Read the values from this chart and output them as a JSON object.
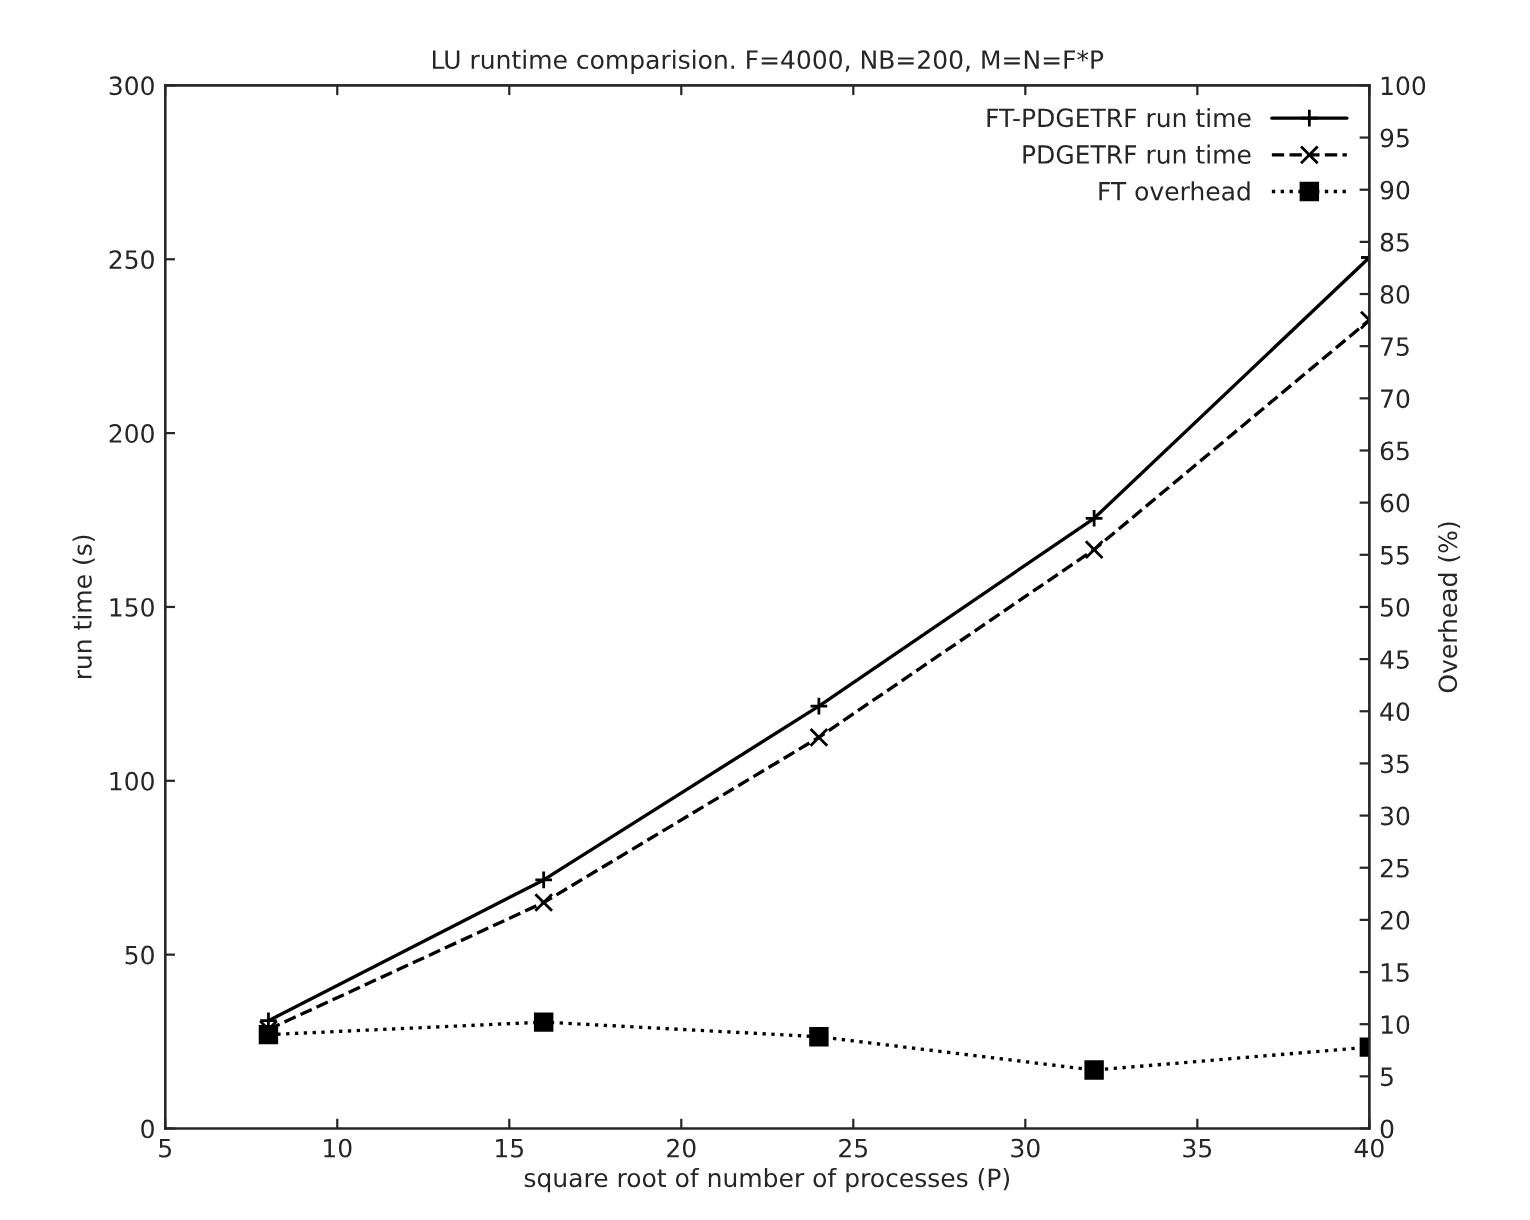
{
  "chart_data": {
    "type": "line",
    "title": "LU runtime comparision. F=4000, NB=200, M=N=F*P",
    "xlabel": "square root of number of processes (P)",
    "ylabel": "run time (s)",
    "y2label": "Overhead (%)",
    "x": [
      8,
      16,
      24,
      32,
      40
    ],
    "series": [
      {
        "name": "FT-PDGETRF run time",
        "color": "#000000",
        "values": [
          31,
          71.5,
          121.5,
          175.5,
          250.5
        ],
        "marker": "plus",
        "line_style": "solid"
      },
      {
        "name": "PDGETRF run time",
        "color": "#000000",
        "values": [
          28.5,
          65,
          112.5,
          166.5,
          232.5
        ],
        "marker": "cross",
        "line_style": "dashed"
      },
      {
        "name": "FT overhead",
        "color": "#000000",
        "values": [
          9,
          10.2,
          8.8,
          5.6,
          7.8
        ],
        "marker": "square",
        "line_style": "dotted",
        "axis": "y2"
      }
    ],
    "xlim": [
      5,
      40
    ],
    "xticks": [
      5,
      10,
      15,
      20,
      25,
      30,
      35,
      40
    ],
    "ylim": [
      0,
      300
    ],
    "yticks": [
      0,
      50,
      100,
      150,
      200,
      250,
      300
    ],
    "y2lim": [
      0,
      100
    ],
    "y2ticks": [
      0,
      5,
      10,
      15,
      20,
      25,
      30,
      35,
      40,
      45,
      50,
      55,
      60,
      65,
      70,
      75,
      80,
      85,
      90,
      95,
      100
    ],
    "legend": "top right",
    "grid": false
  }
}
